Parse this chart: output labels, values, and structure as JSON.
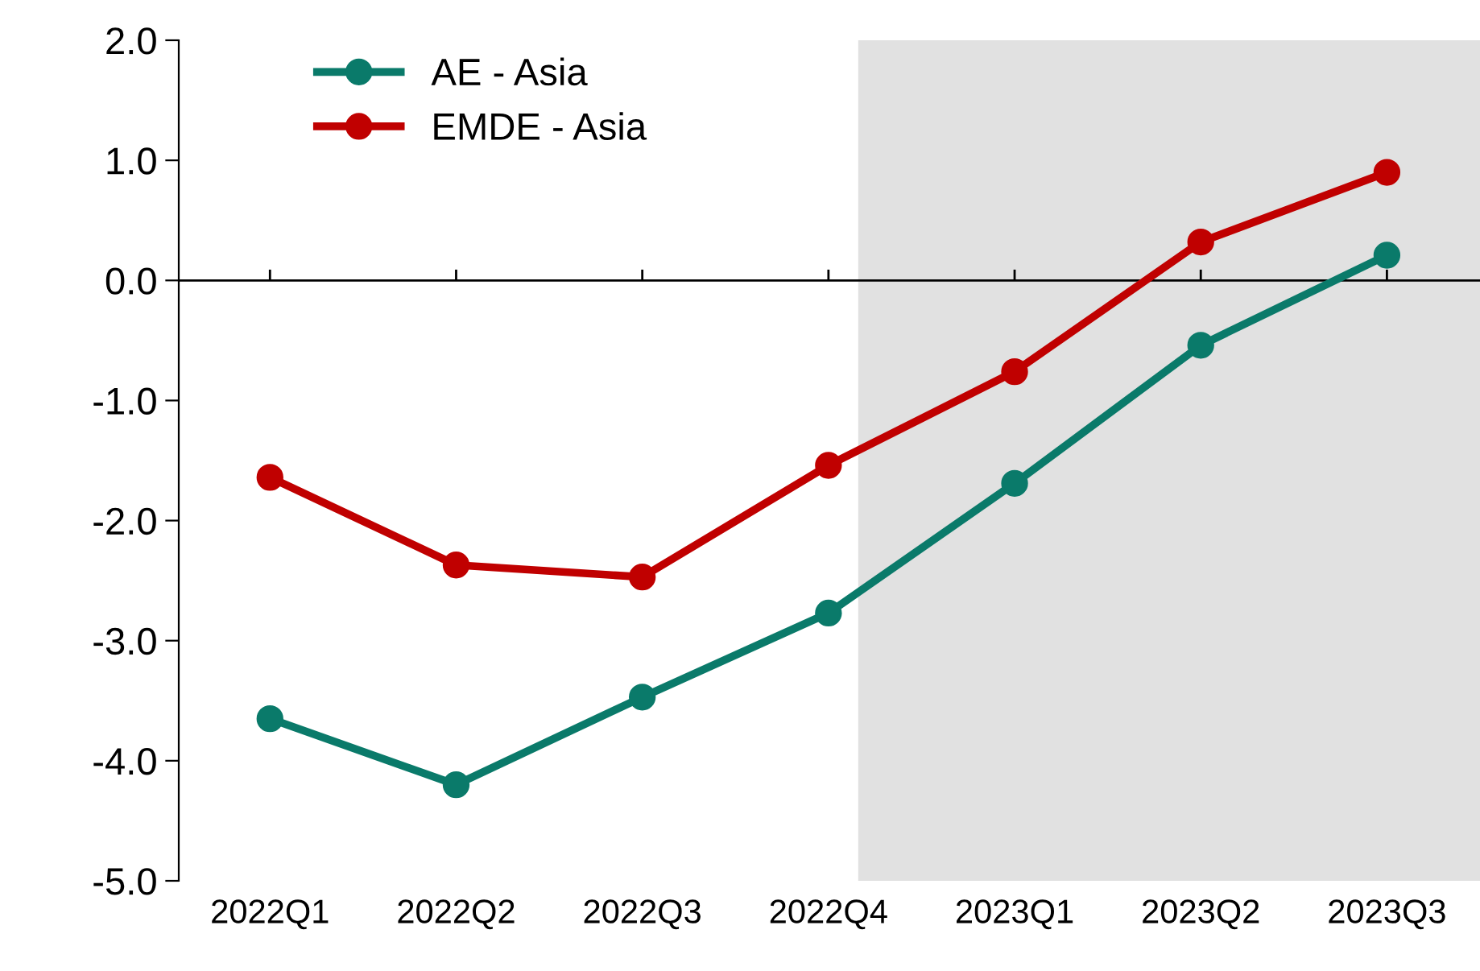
{
  "chart_data": {
    "type": "line",
    "categories": [
      "2022Q1",
      "2022Q2",
      "2022Q3",
      "2022Q4",
      "2023Q1",
      "2023Q2",
      "2023Q3"
    ],
    "series": [
      {
        "name": "AE - Asia",
        "color": "#0a7a6a",
        "values": [
          -3.65,
          -4.2,
          -3.47,
          -2.77,
          -1.69,
          -0.54,
          0.21
        ]
      },
      {
        "name": "EMDE - Asia",
        "color": "#c00000",
        "values": [
          -1.64,
          -2.37,
          -2.47,
          -1.54,
          -0.76,
          0.32,
          0.9
        ]
      }
    ],
    "ylim": [
      -5.0,
      2.0
    ],
    "yticks": [
      {
        "value": -5,
        "label": "-5.0"
      },
      {
        "value": -4,
        "label": "-4.0"
      },
      {
        "value": -3,
        "label": "-3.0"
      },
      {
        "value": -2,
        "label": "-2.0"
      },
      {
        "value": -1,
        "label": "-1.0"
      },
      {
        "value": 0,
        "label": "0.0"
      },
      {
        "value": 1,
        "label": "1.0"
      },
      {
        "value": 2,
        "label": "2.0"
      }
    ],
    "ref_lines": [
      {
        "axis": "y",
        "value": 0,
        "color": "#000000"
      }
    ],
    "marker": "circle",
    "line_style": "solid",
    "legend": "top left",
    "grid": false
  }
}
